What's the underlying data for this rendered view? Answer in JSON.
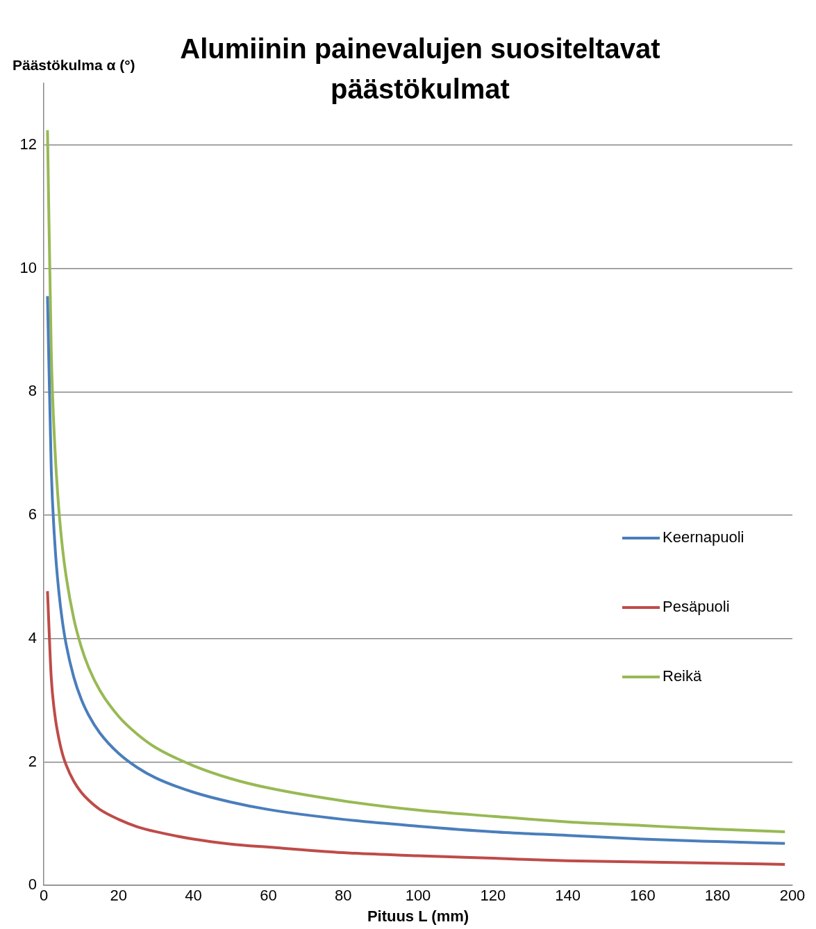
{
  "chart_data": {
    "type": "line",
    "title": "Alumiinin painevalujen suositeltavat päästökulmat",
    "xlabel": "Pituus L (mm)",
    "ylabel": "Päästökulma α (°)",
    "x": [
      1,
      2,
      3,
      4,
      5,
      6,
      8,
      10,
      12,
      15,
      20,
      25,
      30,
      40,
      50,
      60,
      80,
      100,
      120,
      140,
      160,
      180,
      198
    ],
    "series": [
      {
        "name": "Keernapuoli",
        "color": "#4a7ebb",
        "values": [
          9.55,
          6.75,
          5.51,
          4.78,
          4.27,
          3.9,
          3.38,
          3.02,
          2.76,
          2.47,
          2.14,
          1.91,
          1.74,
          1.51,
          1.35,
          1.23,
          1.07,
          0.96,
          0.87,
          0.81,
          0.75,
          0.71,
          0.68
        ]
      },
      {
        "name": "Pesäpuoli",
        "color": "#be4b48",
        "values": [
          4.77,
          3.37,
          2.75,
          2.39,
          2.13,
          1.95,
          1.69,
          1.51,
          1.38,
          1.23,
          1.07,
          0.95,
          0.87,
          0.75,
          0.67,
          0.62,
          0.53,
          0.48,
          0.44,
          0.4,
          0.38,
          0.36,
          0.34
        ]
      },
      {
        "name": "Reikä",
        "color": "#98b954",
        "values": [
          12.24,
          8.66,
          7.07,
          6.12,
          5.47,
          5.0,
          4.33,
          3.87,
          3.53,
          3.16,
          2.74,
          2.45,
          2.23,
          1.94,
          1.73,
          1.58,
          1.37,
          1.22,
          1.12,
          1.03,
          0.97,
          0.91,
          0.87
        ]
      }
    ],
    "xlim": [
      0,
      200
    ],
    "xticks": [
      0,
      20,
      40,
      60,
      80,
      100,
      120,
      140,
      160,
      180,
      200
    ],
    "ylim": [
      0,
      13
    ],
    "yticks": [
      0,
      2,
      4,
      6,
      8,
      10,
      12
    ],
    "grid": "y",
    "legend": "right",
    "marker": "none",
    "line_style": "solid"
  }
}
